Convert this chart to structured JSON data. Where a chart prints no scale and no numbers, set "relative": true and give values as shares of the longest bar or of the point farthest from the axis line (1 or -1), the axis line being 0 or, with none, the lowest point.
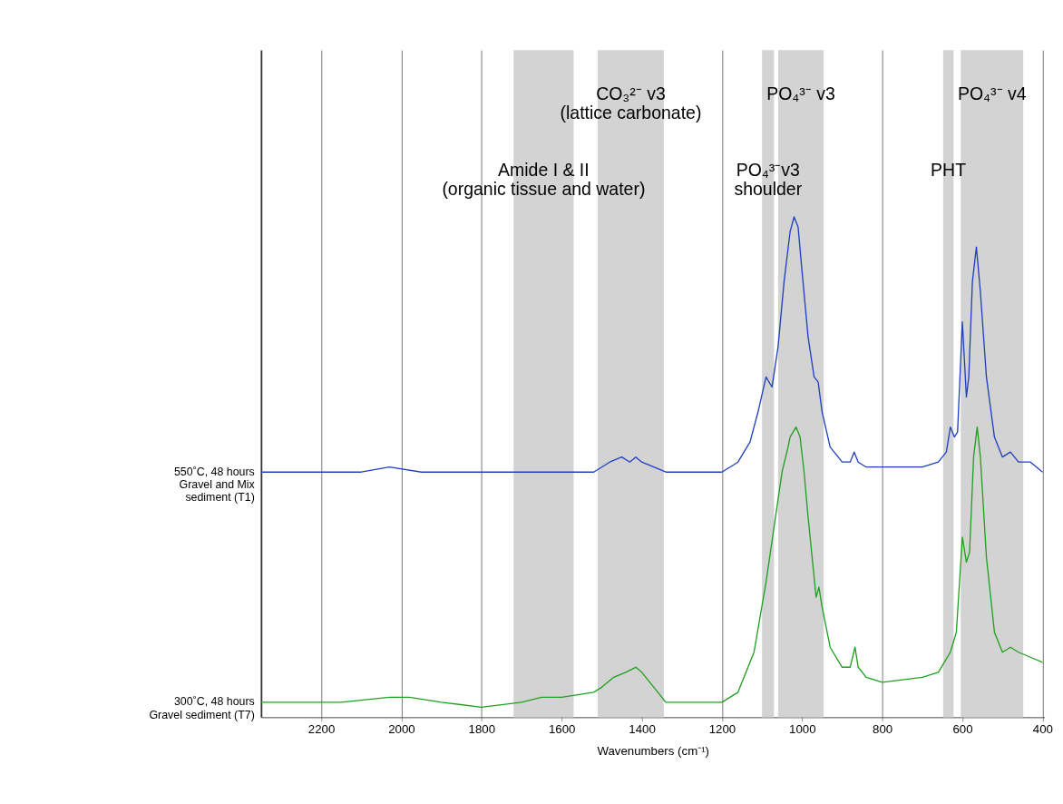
{
  "chart_data": {
    "type": "line",
    "relative": true,
    "xlabel": "Wavenumbers (cm⁻¹)",
    "xlim": [
      2350,
      395
    ],
    "xticks": [
      2200,
      2000,
      1800,
      1600,
      1400,
      1200,
      1000,
      800,
      600,
      400
    ],
    "grid": "x",
    "tick_labels": "x",
    "line_style": "solid",
    "x": [
      2350,
      2200,
      2100,
      2030,
      1950,
      1800,
      1600,
      1520,
      1480,
      1450,
      1430,
      1415,
      1400,
      1370,
      1340,
      1250,
      1200,
      1160,
      1130,
      1110,
      1090,
      1075,
      1060,
      1045,
      1030,
      1020,
      1010,
      1000,
      985,
      970,
      960,
      950,
      930,
      900,
      880,
      870,
      860,
      840,
      800,
      700,
      660,
      640,
      630,
      620,
      612,
      600,
      590,
      584,
      575,
      565,
      555,
      540,
      520,
      500,
      480,
      460,
      430,
      400
    ],
    "series": [
      {
        "name": "550˚C, 48 hours\nGravel and Mix\nsediment (T1)",
        "color": "#2040c0",
        "values": [
          0.49,
          0.49,
          0.49,
          0.5,
          0.49,
          0.49,
          0.49,
          0.49,
          0.51,
          0.52,
          0.51,
          0.52,
          0.51,
          0.5,
          0.49,
          0.49,
          0.49,
          0.51,
          0.55,
          0.61,
          0.68,
          0.66,
          0.74,
          0.87,
          0.97,
          1.0,
          0.98,
          0.89,
          0.76,
          0.68,
          0.67,
          0.61,
          0.54,
          0.51,
          0.51,
          0.53,
          0.51,
          0.5,
          0.5,
          0.5,
          0.51,
          0.53,
          0.58,
          0.56,
          0.57,
          0.79,
          0.64,
          0.68,
          0.87,
          0.94,
          0.85,
          0.68,
          0.56,
          0.52,
          0.53,
          0.51,
          0.51,
          0.49
        ]
      },
      {
        "name": "300˚C, 48 hours\nGravel sediment (T7)",
        "color": "#20a020",
        "x": [
          2350,
          2200,
          2150,
          2030,
          1980,
          1900,
          1800,
          1700,
          1650,
          1600,
          1520,
          1500,
          1470,
          1440,
          1415,
          1400,
          1370,
          1340,
          1250,
          1200,
          1160,
          1120,
          1090,
          1070,
          1050,
          1035,
          1030,
          1015,
          1005,
          995,
          985,
          975,
          965,
          958,
          950,
          930,
          900,
          880,
          868,
          860,
          840,
          800,
          700,
          660,
          630,
          615,
          600,
          590,
          582,
          572,
          563,
          555,
          540,
          520,
          500,
          480,
          460,
          430,
          400
        ],
        "values": [
          0.03,
          0.03,
          0.03,
          0.04,
          0.04,
          0.03,
          0.02,
          0.03,
          0.04,
          0.04,
          0.05,
          0.06,
          0.08,
          0.09,
          0.1,
          0.09,
          0.06,
          0.03,
          0.03,
          0.03,
          0.05,
          0.13,
          0.27,
          0.38,
          0.49,
          0.54,
          0.56,
          0.58,
          0.56,
          0.49,
          0.4,
          0.32,
          0.24,
          0.26,
          0.22,
          0.14,
          0.1,
          0.1,
          0.14,
          0.1,
          0.08,
          0.07,
          0.08,
          0.09,
          0.13,
          0.17,
          0.36,
          0.31,
          0.33,
          0.52,
          0.58,
          0.52,
          0.32,
          0.17,
          0.13,
          0.14,
          0.13,
          0.12,
          0.11
        ]
      }
    ],
    "bands": [
      {
        "axis": "x",
        "from": 1720,
        "to": 1570,
        "label": "Amide I & II\n(organic tissue and water)",
        "color": "#d3d3d3"
      },
      {
        "axis": "x",
        "from": 1510,
        "to": 1345,
        "label": "CO₃²⁻ v3\n(lattice carbonate)",
        "color": "#d3d3d3"
      },
      {
        "axis": "x",
        "from": 1100,
        "to": 1070,
        "label": "PO₄³⁻v3\nshoulder",
        "color": "#d3d3d3"
      },
      {
        "axis": "x",
        "from": 1060,
        "to": 946,
        "label": "PO₄³⁻ v3",
        "color": "#d3d3d3"
      },
      {
        "axis": "x",
        "from": 648,
        "to": 622,
        "label": "PHT",
        "color": "#d3d3d3"
      },
      {
        "axis": "x",
        "from": 604,
        "to": 448,
        "label": "PO₄³⁻ v4",
        "color": "#d3d3d3"
      }
    ]
  }
}
